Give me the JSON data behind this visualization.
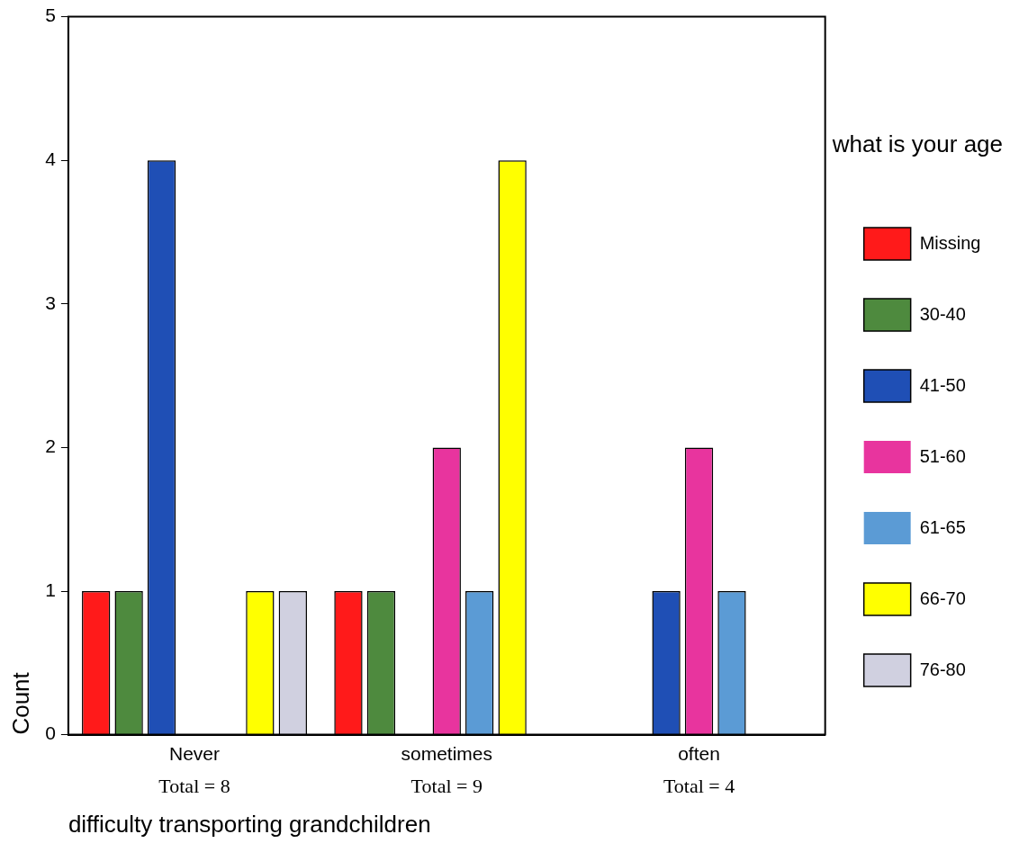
{
  "chart_data": {
    "type": "bar",
    "xlabel": "difficulty transporting grandchildren",
    "ylabel": "Count",
    "legend_title": "what is your age",
    "legend": "right",
    "grid": false,
    "categories": [
      "Never",
      "sometimes",
      "often"
    ],
    "series": [
      {
        "name": "Missing",
        "color": "#ff1a1a",
        "values": [
          1,
          1,
          0
        ]
      },
      {
        "name": "30-40",
        "color": "#4e8a3e",
        "values": [
          1,
          1,
          0
        ]
      },
      {
        "name": "41-50",
        "color": "#1f4fb5",
        "values": [
          4,
          0,
          1
        ]
      },
      {
        "name": "51-60",
        "color": "#e8349e",
        "values": [
          0,
          2,
          2
        ]
      },
      {
        "name": "61-65",
        "color": "#5b9bd5",
        "values": [
          0,
          1,
          1
        ]
      },
      {
        "name": "66-70",
        "color": "#ffff00",
        "values": [
          1,
          4,
          0
        ]
      },
      {
        "name": "76-80",
        "color": "#d0d0e0",
        "values": [
          1,
          0,
          0
        ]
      }
    ],
    "ylim": [
      0,
      5
    ],
    "yticks": [
      0,
      1,
      2,
      3,
      4,
      5
    ],
    "annotations": [
      "Total = 8",
      "Total = 9",
      "Total = 4"
    ]
  }
}
